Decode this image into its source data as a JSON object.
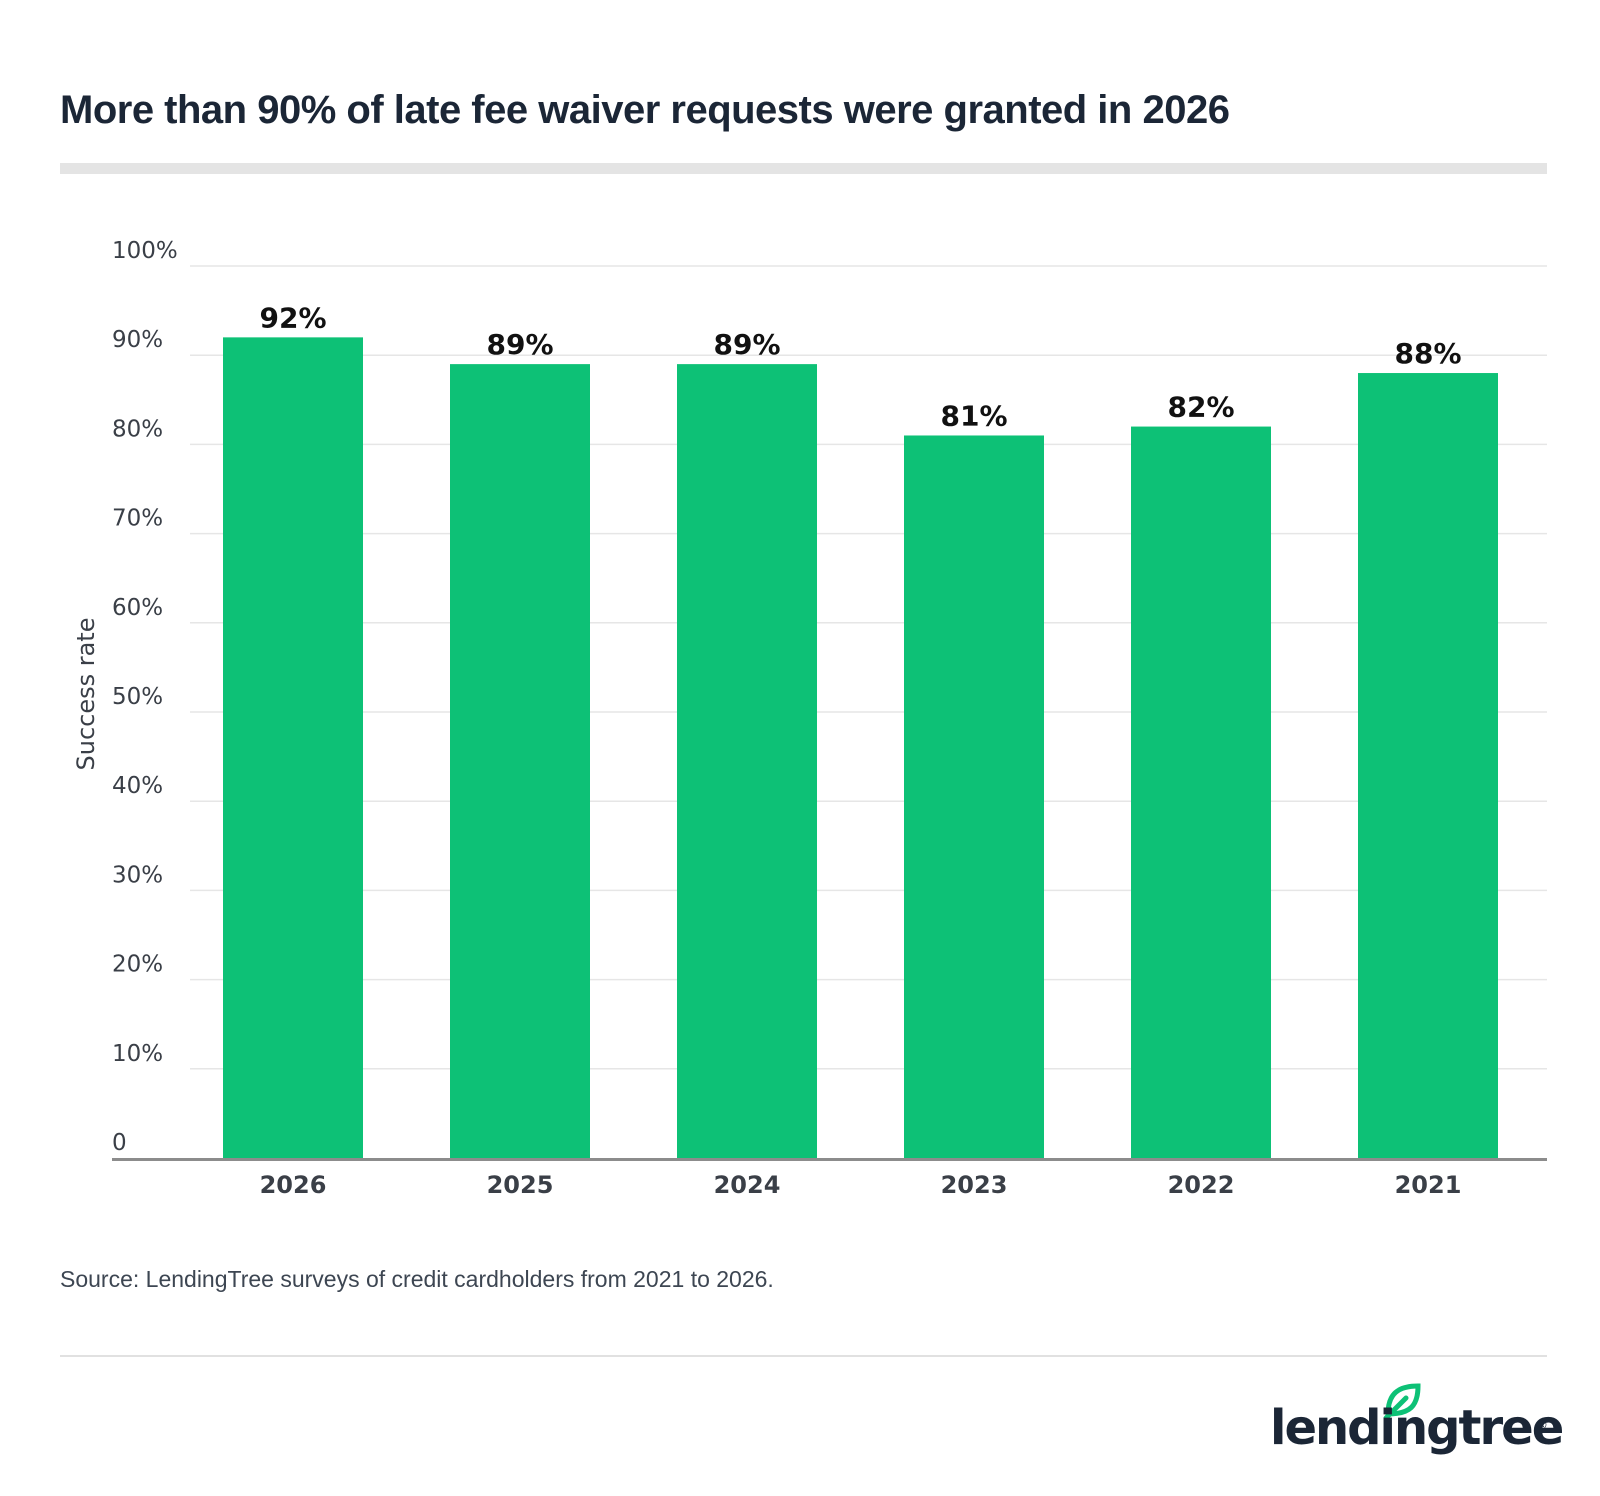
{
  "header": {
    "title": "More than 90% of late fee waiver requests were granted in 2026"
  },
  "chart_data": {
    "type": "bar",
    "categories": [
      "2026",
      "2025",
      "2024",
      "2023",
      "2022",
      "2021"
    ],
    "values": [
      92,
      89,
      89,
      81,
      82,
      88
    ],
    "value_labels": [
      "92%",
      "89%",
      "89%",
      "81%",
      "82%",
      "88%"
    ],
    "ylabel": "Success rate",
    "xlabel": "",
    "ylim": [
      0,
      100
    ],
    "y_ticks": [
      {
        "value": 0,
        "label": "0"
      },
      {
        "value": 10,
        "label": "10%"
      },
      {
        "value": 20,
        "label": "20%"
      },
      {
        "value": 30,
        "label": "30%"
      },
      {
        "value": 40,
        "label": "40%"
      },
      {
        "value": 50,
        "label": "50%"
      },
      {
        "value": 60,
        "label": "60%"
      },
      {
        "value": 70,
        "label": "70%"
      },
      {
        "value": 80,
        "label": "80%"
      },
      {
        "value": 90,
        "label": "90%"
      },
      {
        "value": 100,
        "label": "100%"
      }
    ],
    "grid": true,
    "bar_color": "#0dc176"
  },
  "footer": {
    "source": "Source: LendingTree surveys of credit cardholders from 2021 to 2026.",
    "logo_text": "lendingtree",
    "logo_reg": "®"
  },
  "colors": {
    "title": "#1b2636",
    "grid": "#e6e6e6",
    "axis": "#8c8c8c",
    "tick_text": "#3a3f47",
    "logo_leaf": "#0dc176"
  }
}
